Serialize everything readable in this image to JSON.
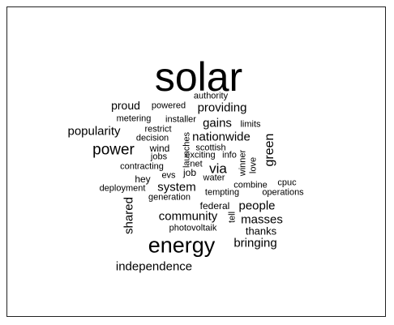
{
  "words": {
    "solar": "solar",
    "authority": "authority",
    "proud": "proud",
    "powered": "powered",
    "providing": "providing",
    "metering": "metering",
    "installer": "installer",
    "gains": "gains",
    "limits": "limits",
    "popularity": "popularity",
    "restrict": "restrict",
    "nationwide": "nationwide",
    "decision": "decision",
    "launches": "launches",
    "power": "power",
    "wind": "wind",
    "scottish": "scottish",
    "green": "green",
    "jobs": "jobs",
    "exciting": "exciting",
    "info": "info",
    "contracting": "contracting",
    "net": "net",
    "via": "via",
    "winner": "winner",
    "love": "love",
    "hey": "hey",
    "evs": "evs",
    "job": "job",
    "water": "water",
    "cpuc": "cpuc",
    "deployment": "deployment",
    "system": "system",
    "combine": "combine",
    "operations": "operations",
    "generation": "generation",
    "tempting": "tempting",
    "shared": "shared",
    "federal": "federal",
    "people": "people",
    "community": "community",
    "tell": "tell",
    "masses": "masses",
    "photovoltaik": "photovoltaik",
    "thanks": "thanks",
    "energy": "energy",
    "bringing": "bringing",
    "independence": "independence"
  }
}
